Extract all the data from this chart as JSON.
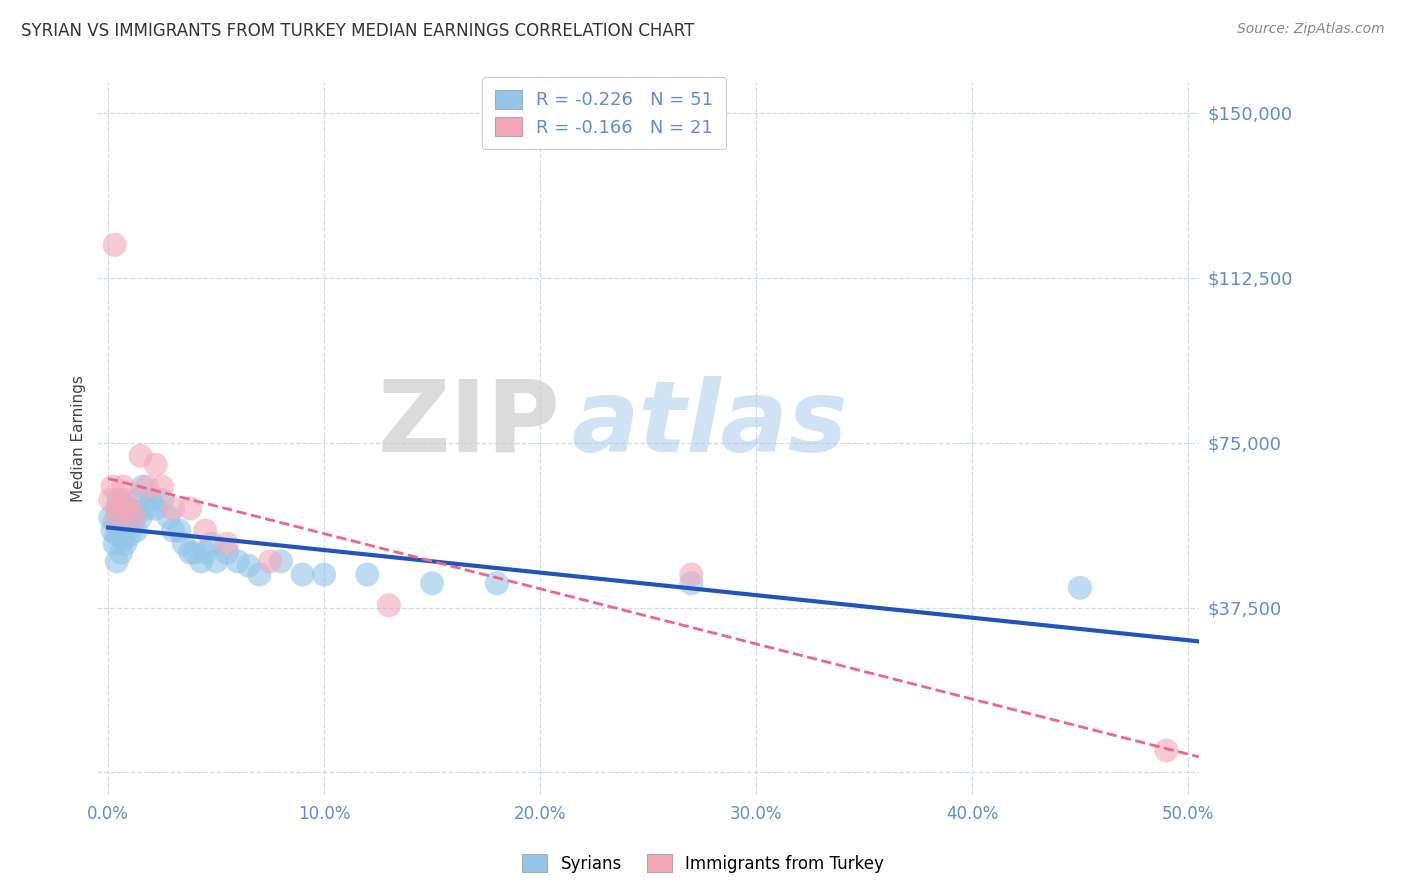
{
  "title": "SYRIAN VS IMMIGRANTS FROM TURKEY MEDIAN EARNINGS CORRELATION CHART",
  "source": "Source: ZipAtlas.com",
  "ylabel": "Median Earnings",
  "xlim": [
    -0.005,
    0.505
  ],
  "ylim": [
    -5000,
    157000
  ],
  "yticks": [
    0,
    37500,
    75000,
    112500,
    150000
  ],
  "ytick_labels": [
    "",
    "$37,500",
    "$75,000",
    "$112,500",
    "$150,000"
  ],
  "xticks": [
    0.0,
    0.1,
    0.2,
    0.3,
    0.4,
    0.5
  ],
  "xtick_labels": [
    "0.0%",
    "10.0%",
    "20.0%",
    "30.0%",
    "40.0%",
    "50.0%"
  ],
  "syrian_color": "#92C5E8",
  "turkey_color": "#F4A7B9",
  "syrian_R": -0.226,
  "syrian_N": 51,
  "turkey_R": -0.166,
  "turkey_N": 21,
  "trend_blue": "#2255BB",
  "trend_pink": "#EE6688",
  "grid_color": "#C8D8EE",
  "bg_color": "#FFFFFF",
  "title_color": "#333333",
  "axis_color": "#5B8DD9",
  "source_color": "#888888",
  "watermark_zip": "ZIP",
  "watermark_atlas": "atlas",
  "syrians_label": "Syrians",
  "turkey_label": "Immigrants from Turkey",
  "syrian_x": [
    0.001,
    0.002,
    0.003,
    0.003,
    0.004,
    0.004,
    0.004,
    0.005,
    0.005,
    0.005,
    0.006,
    0.006,
    0.007,
    0.007,
    0.008,
    0.008,
    0.009,
    0.01,
    0.01,
    0.011,
    0.012,
    0.013,
    0.014,
    0.015,
    0.016,
    0.018,
    0.02,
    0.022,
    0.025,
    0.028,
    0.03,
    0.033,
    0.035,
    0.038,
    0.04,
    0.043,
    0.045,
    0.048,
    0.05,
    0.055,
    0.06,
    0.065,
    0.07,
    0.08,
    0.09,
    0.1,
    0.12,
    0.15,
    0.18,
    0.27,
    0.45
  ],
  "syrian_y": [
    58000,
    55000,
    57000,
    52000,
    60000,
    54000,
    48000,
    62000,
    58000,
    55000,
    50000,
    57000,
    60000,
    53000,
    58000,
    52000,
    56000,
    60000,
    54000,
    57000,
    58000,
    55000,
    62000,
    58000,
    65000,
    60000,
    62000,
    60000,
    62000,
    58000,
    55000,
    55000,
    52000,
    50000,
    50000,
    48000,
    50000,
    52000,
    48000,
    50000,
    48000,
    47000,
    45000,
    48000,
    45000,
    45000,
    45000,
    43000,
    43000,
    43000,
    42000
  ],
  "turkey_x": [
    0.001,
    0.002,
    0.003,
    0.004,
    0.005,
    0.007,
    0.008,
    0.01,
    0.012,
    0.015,
    0.018,
    0.022,
    0.025,
    0.03,
    0.038,
    0.045,
    0.055,
    0.075,
    0.13,
    0.27,
    0.49
  ],
  "turkey_y": [
    62000,
    65000,
    120000,
    58000,
    60000,
    65000,
    62000,
    60000,
    58000,
    72000,
    65000,
    70000,
    65000,
    60000,
    60000,
    55000,
    52000,
    48000,
    38000,
    45000,
    5000
  ]
}
